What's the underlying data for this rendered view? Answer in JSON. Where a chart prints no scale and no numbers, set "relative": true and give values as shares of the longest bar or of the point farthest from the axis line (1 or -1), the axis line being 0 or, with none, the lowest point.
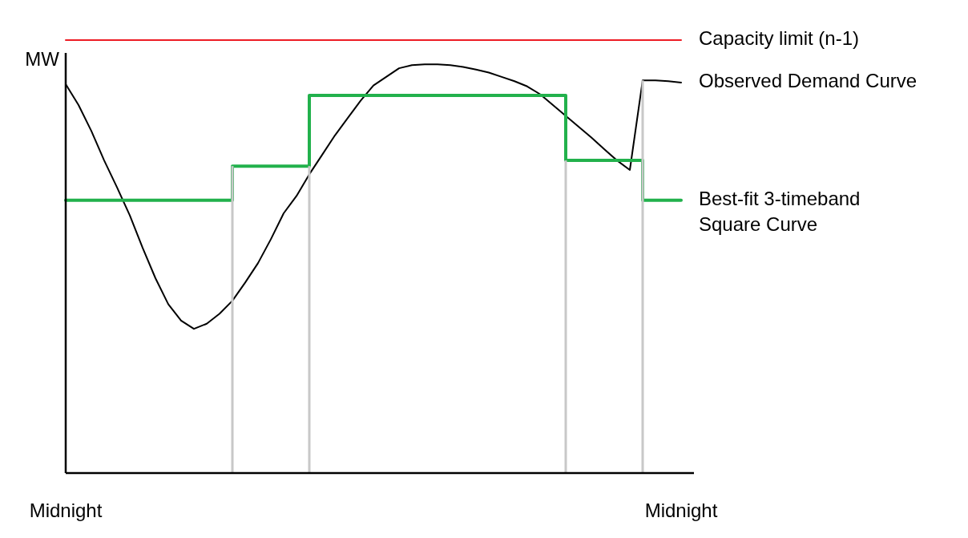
{
  "chart_data": {
    "type": "line",
    "relative": true,
    "ylabel": "MW",
    "categories": [
      "Midnight",
      null,
      null,
      null,
      null,
      null,
      null,
      null,
      null,
      null,
      null,
      null,
      null,
      null,
      null,
      null,
      null,
      null,
      null,
      null,
      null,
      null,
      null,
      null,
      null,
      null,
      null,
      null,
      null,
      null,
      null,
      null,
      null,
      null,
      null,
      null,
      null,
      null,
      null,
      null,
      null,
      null,
      null,
      null,
      null,
      null,
      null,
      null,
      "Midnight"
    ],
    "series": [
      {
        "type": "bar",
        "color": "#c8c8c8",
        "values": [
          null,
          null,
          null,
          null,
          null,
          null,
          null,
          null,
          null,
          null,
          null,
          null,
          null,
          0.709,
          null,
          null,
          null,
          null,
          null,
          0.709,
          null,
          null,
          null,
          null,
          null,
          null,
          null,
          null,
          null,
          null,
          null,
          null,
          null,
          null,
          null,
          null,
          null,
          null,
          null,
          0.722,
          null,
          null,
          null,
          null,
          null,
          0.907,
          null,
          null,
          null
        ]
      },
      {
        "name": "Capacity limit (n-1)",
        "color": "#ed1c24",
        "values": [
          1,
          1,
          1,
          1,
          1,
          1,
          1,
          1,
          1,
          1,
          1,
          1,
          1,
          1,
          1,
          1,
          1,
          1,
          1,
          1,
          1,
          1,
          1,
          1,
          1,
          1,
          1,
          1,
          1,
          1,
          1,
          1,
          1,
          1,
          1,
          1,
          1,
          1,
          1,
          1,
          1,
          1,
          1,
          1,
          1,
          1,
          1,
          1,
          1
        ]
      },
      {
        "name": "Observed Demand Curve",
        "color": "#000000",
        "values": [
          0.898,
          0.85,
          0.79,
          0.722,
          0.66,
          0.595,
          0.52,
          0.45,
          0.39,
          0.352,
          0.333,
          0.345,
          0.368,
          0.398,
          0.44,
          0.485,
          0.54,
          0.6,
          0.64,
          0.69,
          0.735,
          0.78,
          0.82,
          0.86,
          0.895,
          0.915,
          0.935,
          0.942,
          0.944,
          0.944,
          0.942,
          0.938,
          0.932,
          0.925,
          0.915,
          0.905,
          0.893,
          0.875,
          0.85,
          0.825,
          0.8,
          0.775,
          0.748,
          0.722,
          0.7,
          0.907,
          0.907,
          0.905,
          0.902
        ]
      },
      {
        "name": "Best-fit 3-timeband Square Curve",
        "type": "step",
        "color": "#22b14c",
        "values": [
          0.63,
          0.63,
          0.63,
          0.63,
          0.63,
          0.63,
          0.63,
          0.63,
          0.63,
          0.63,
          0.63,
          0.63,
          0.63,
          0.709,
          0.709,
          0.709,
          0.709,
          0.709,
          0.709,
          0.872,
          0.872,
          0.872,
          0.872,
          0.872,
          0.872,
          0.872,
          0.872,
          0.872,
          0.872,
          0.872,
          0.872,
          0.872,
          0.872,
          0.872,
          0.872,
          0.872,
          0.872,
          0.872,
          0.872,
          0.722,
          0.722,
          0.722,
          0.722,
          0.722,
          0.722,
          0.63,
          0.63,
          0.63,
          0.63
        ]
      }
    ]
  }
}
